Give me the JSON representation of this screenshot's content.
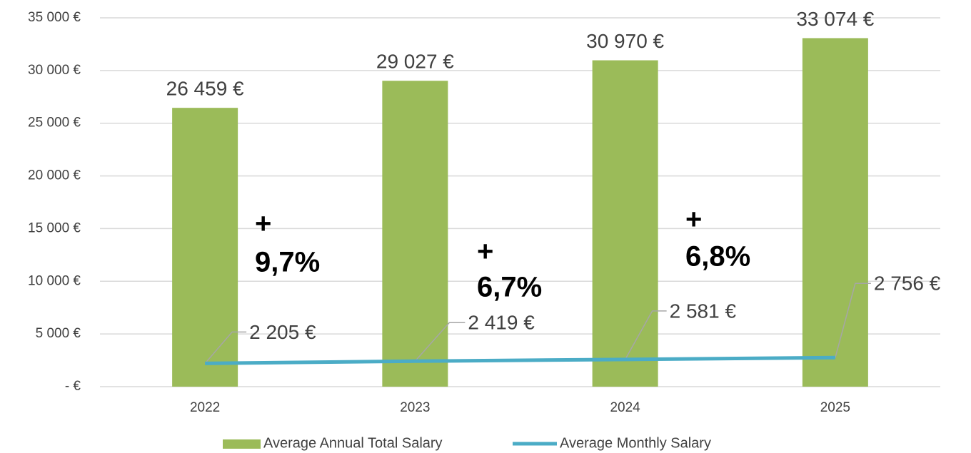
{
  "chart_data": {
    "type": "combo",
    "categories": [
      "2022",
      "2023",
      "2024",
      "2025"
    ],
    "series": [
      {
        "name": "Average Annual Total Salary",
        "type": "bar",
        "color": "#9bbb59",
        "values": [
          26459,
          29027,
          30970,
          33074
        ],
        "value_labels": [
          "26 459 €",
          "29 027 €",
          "30 970 €",
          "33 074 €"
        ]
      },
      {
        "name": "Average Monthly Salary",
        "type": "line",
        "color": "#4bacc6",
        "values": [
          2205,
          2419,
          2581,
          2756
        ],
        "value_labels": [
          "2 205 €",
          "2 419 €",
          "2 581 €",
          "2 756 €"
        ]
      }
    ],
    "annotations": [
      [
        "+",
        "9,7%"
      ],
      [
        "+",
        "6,7%"
      ],
      [
        "+",
        "6,8%"
      ]
    ],
    "ylim": [
      0,
      35000
    ],
    "yticks": [
      {
        "value": 0,
        "label": "-   €"
      },
      {
        "value": 5000,
        "label": "5 000 €"
      },
      {
        "value": 10000,
        "label": "10 000 €"
      },
      {
        "value": 15000,
        "label": "15 000 €"
      },
      {
        "value": 20000,
        "label": "20 000 €"
      },
      {
        "value": 25000,
        "label": "25 000 €"
      },
      {
        "value": 30000,
        "label": "30 000 €"
      },
      {
        "value": 35000,
        "label": "35 000 €"
      }
    ],
    "grid": true
  }
}
